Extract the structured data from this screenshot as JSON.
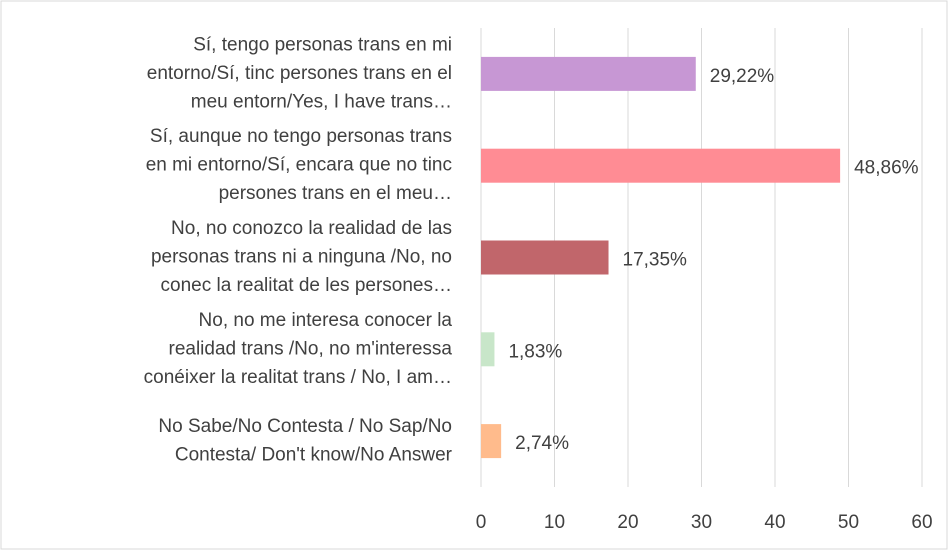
{
  "chart_data": {
    "type": "bar",
    "orientation": "horizontal",
    "categories": [
      [
        "Sí, tengo personas trans en mi",
        "entorno/Sí, tinc persones trans en el",
        "meu entorn/Yes, I have trans…"
      ],
      [
        "Sí, aunque no tengo personas trans",
        "en mi entorno/Sí, encara que no tinc",
        "persones trans en el meu…"
      ],
      [
        "No, no conozco la realidad de las",
        "personas trans ni a ninguna /No, no",
        "conec la realitat de les persones…"
      ],
      [
        "No, no me interesa conocer la",
        "realidad trans /No, no m'interessa",
        "conéixer la realitat trans / No, I am…"
      ],
      [
        "No Sabe/No Contesta / No Sap/No",
        "Contesta/ Don't know/No Answer"
      ]
    ],
    "values": [
      29.22,
      48.86,
      17.35,
      1.83,
      2.74
    ],
    "value_labels": [
      "29,22%",
      "48,86%",
      "17,35%",
      "1,83%",
      "2,74%"
    ],
    "colors": [
      "#c797d4",
      "#ff8c94",
      "#c1666b",
      "#c8e6c9",
      "#ffbb8c"
    ],
    "xlim": [
      0,
      60
    ],
    "xticks": [
      0,
      10,
      20,
      30,
      40,
      50,
      60
    ],
    "grid": true
  }
}
